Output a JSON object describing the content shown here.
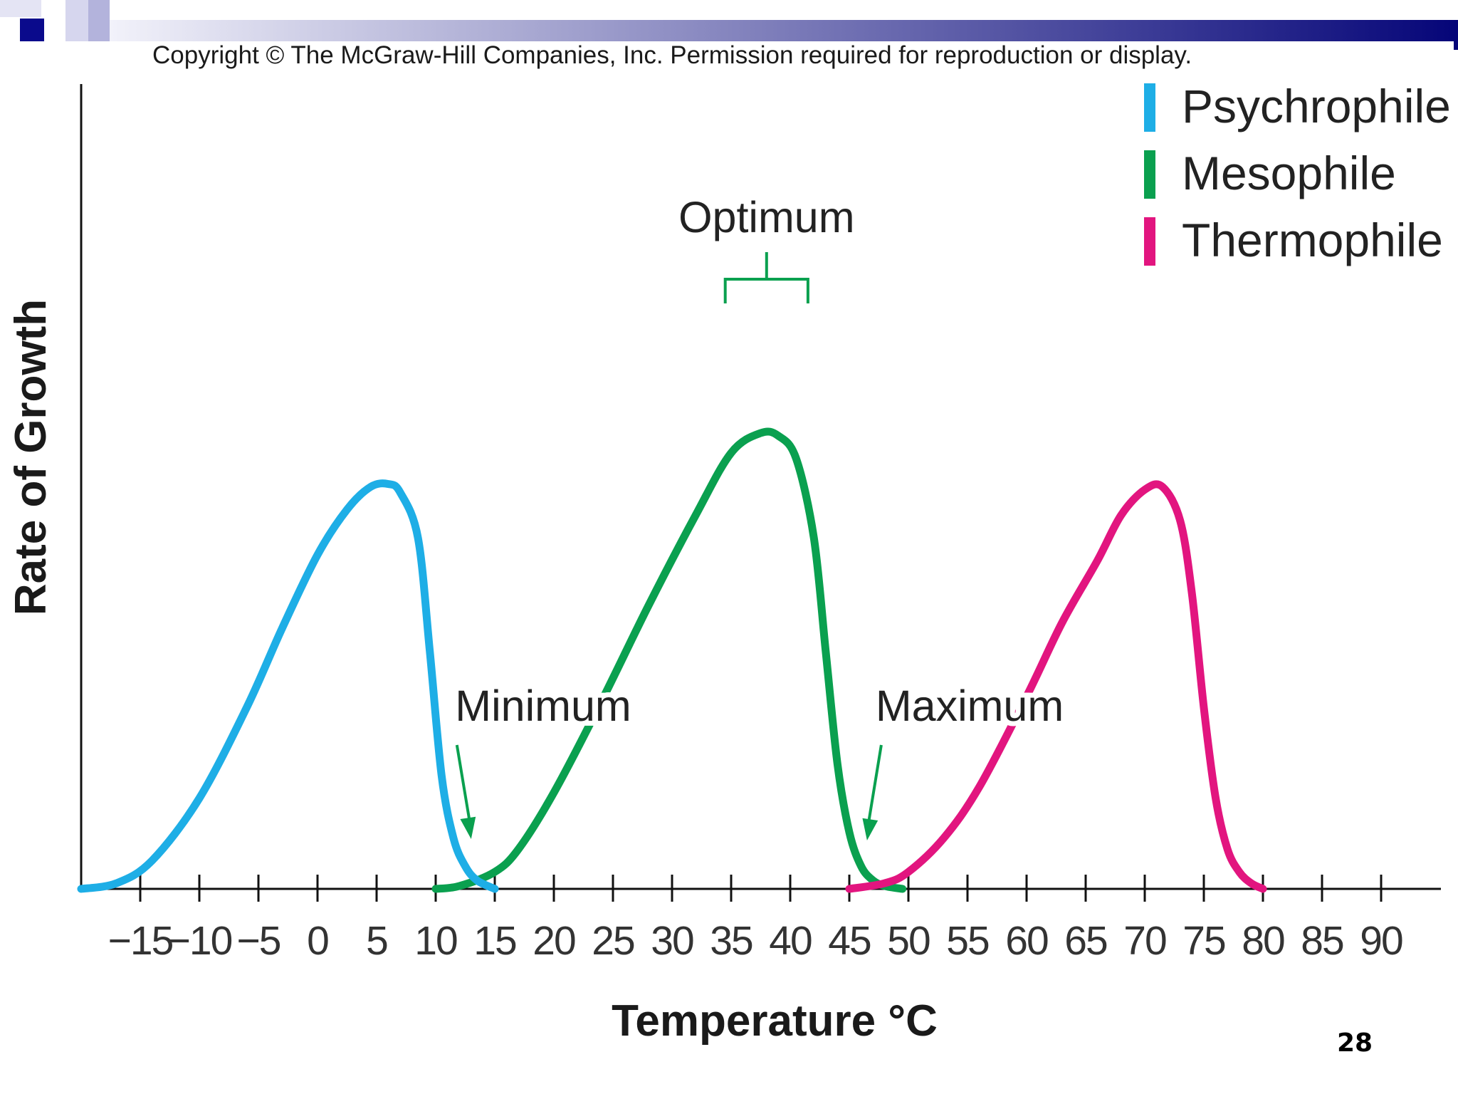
{
  "slide": {
    "copyright": "Copyright © The McGraw-Hill Companies, Inc. Permission required for reproduction or display.",
    "page_number": "28",
    "header_colors": {
      "dark_square": "#0a0a8c",
      "light_square": "#b3b3dc",
      "bar_start": "#f2f2fa",
      "bar_end": "#050578"
    }
  },
  "chart_data": {
    "type": "line",
    "title": "",
    "xlabel": "Temperature °C",
    "ylabel": "Rate of Growth",
    "xlim": [
      -20,
      95
    ],
    "ylim": [
      0,
      100
    ],
    "x_ticks": [
      -15,
      -10,
      -5,
      0,
      5,
      10,
      15,
      20,
      25,
      30,
      35,
      40,
      45,
      50,
      55,
      60,
      65,
      70,
      75,
      80,
      85,
      90
    ],
    "x_tick_labels": [
      "−15",
      "−10",
      "−5",
      "0",
      "5",
      "10",
      "15",
      "20",
      "25",
      "30",
      "35",
      "40",
      "45",
      "50",
      "55",
      "60",
      "65",
      "70",
      "75",
      "80",
      "85",
      "90"
    ],
    "legend_position": "top-right",
    "series": [
      {
        "name": "Psychrophile",
        "color": "#1eaee6",
        "x": [
          -20,
          -17,
          -14,
          -10,
          -6,
          -3,
          0,
          2.5,
          4.5,
          6,
          7,
          8.5,
          9.5,
          10.5,
          11.5,
          12.5,
          13.5,
          15
        ],
        "y": [
          0,
          1,
          5,
          16,
          32,
          46,
          59,
          67,
          71,
          71.5,
          70,
          62,
          42,
          20,
          9,
          4,
          1.5,
          0
        ]
      },
      {
        "name": "Mesophile",
        "color": "#0aa04f",
        "x": [
          10,
          12,
          15,
          17,
          20,
          24,
          28,
          32,
          35,
          37.5,
          39,
          40.5,
          42,
          43,
          44,
          45,
          46,
          47,
          48,
          49.5
        ],
        "y": [
          0,
          0.5,
          3,
          7,
          17,
          33,
          50,
          66,
          77,
          80.5,
          80,
          76,
          62,
          42,
          22,
          10,
          4,
          1.5,
          0.5,
          0
        ]
      },
      {
        "name": "Thermophile",
        "color": "#e2157f",
        "x": [
          45,
          48,
          50,
          53,
          56,
          60,
          63,
          66,
          68,
          70,
          71.5,
          73,
          74,
          75,
          76,
          77,
          78,
          79,
          80
        ],
        "y": [
          0,
          1,
          3,
          9,
          18,
          34,
          47,
          58,
          66,
          70.5,
          71,
          65,
          52,
          32,
          16,
          7,
          3,
          1,
          0
        ]
      }
    ],
    "annotations": [
      {
        "text": "Optimum",
        "target_series": "Mesophile",
        "x_range": [
          34.5,
          41.5
        ]
      },
      {
        "text": "Minimum",
        "target_series": "Mesophile",
        "x": 13
      },
      {
        "text": "Maximum",
        "target_series": "Mesophile",
        "x": 46.5
      }
    ]
  }
}
